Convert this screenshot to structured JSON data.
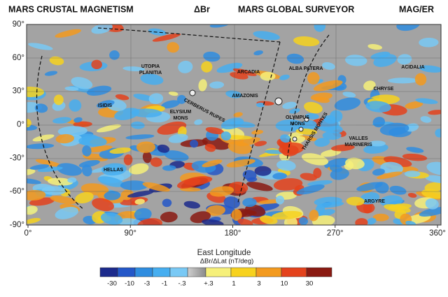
{
  "header": {
    "title": "MARS CRUSTAL MAGNETISM",
    "quantity": "ΔBr",
    "mission": "MARS GLOBAL SURVEYOR",
    "instrument": "MAG/ER"
  },
  "axes": {
    "y_ticks": [
      "90°",
      "60°",
      "30°",
      "0°",
      "-30°",
      "-60°",
      "-90°"
    ],
    "x_ticks": [
      "0°",
      "90°",
      "180°",
      "270°",
      "360°"
    ],
    "x_label": "East Longitude"
  },
  "regions": [
    {
      "lines": [
        "UTOPIA",
        "PLANITIA"
      ]
    },
    {
      "lines": [
        "ELYSIUM",
        "MONS"
      ]
    },
    {
      "lines": [
        "ISIDIS"
      ]
    },
    {
      "lines": [
        "HELLAS"
      ]
    },
    {
      "lines": [
        "ARCADIA"
      ]
    },
    {
      "lines": [
        "AMAZONIS"
      ]
    },
    {
      "lines": [
        "ALBA PATERA"
      ]
    },
    {
      "lines": [
        "OLYMPUS",
        "MONS"
      ]
    },
    {
      "lines": [
        "THARSIS MONTES"
      ]
    },
    {
      "lines": [
        "VALLES",
        "MARINERIS"
      ]
    },
    {
      "lines": [
        "CERBERUS RUPES"
      ]
    },
    {
      "lines": [
        "CHRYSE"
      ]
    },
    {
      "lines": [
        "ACIDALIA"
      ]
    },
    {
      "lines": [
        "ARGYRE"
      ]
    }
  ],
  "colorbar": {
    "title": "ΔBr/ΔLat (nT/deg)",
    "negative": [
      {
        "label": "-30",
        "color": "#1c2a8c"
      },
      {
        "label": "-10",
        "color": "#2457c8"
      },
      {
        "label": "-3",
        "color": "#2f8de0"
      },
      {
        "label": "-1",
        "color": "#46aef0"
      },
      {
        "label": "-.3",
        "color": "#79c9f5"
      }
    ],
    "positive": [
      {
        "label": "+.3",
        "color": "#f6f07a"
      },
      {
        "label": "1",
        "color": "#f7d21e"
      },
      {
        "label": "3",
        "color": "#f39a1f"
      },
      {
        "label": "10",
        "color": "#e4421c"
      },
      {
        "label": "30",
        "color": "#8a1a12"
      }
    ]
  }
}
